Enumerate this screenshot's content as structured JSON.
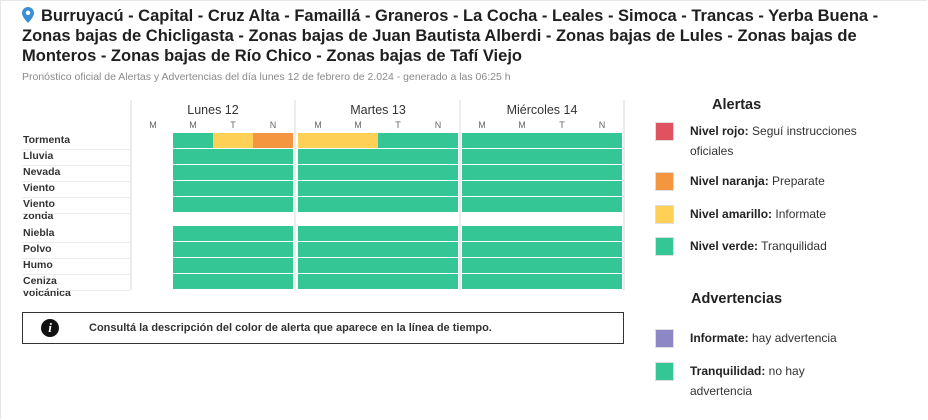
{
  "header": {
    "icon": "map-pin-icon",
    "title": "Burruyacú - Capital - Cruz Alta - Famaillá - Graneros - La Cocha - Leales - Simoca - Trancas - Yerba Buena - Zonas bajas de Chicligasta - Zonas bajas de Juan Bautista Alberdi - Zonas bajas de Lules - Zonas bajas de Monteros - Zonas bajas de Río Chico - Zonas bajas de Tafí Viejo",
    "subtitle": "Pronóstico oficial de Alertas y Advertencias del día lunes 12 de febrero de 2.024 - generado a las 06:25 h"
  },
  "timeline": {
    "days": [
      {
        "label": "Lunes 12",
        "slots": [
          "M",
          "M",
          "T",
          "N"
        ]
      },
      {
        "label": "Martes 13",
        "slots": [
          "M",
          "M",
          "T",
          "N"
        ]
      },
      {
        "label": "Miércoles 14",
        "slots": [
          "M",
          "M",
          "T",
          "N"
        ]
      }
    ],
    "rows": [
      {
        "label": "Tormenta",
        "levels": [
          null,
          "green",
          "yellow",
          "orange",
          "yellow",
          "yellow",
          "green",
          "green",
          "green",
          "green",
          "green",
          "green"
        ]
      },
      {
        "label": "Lluvia",
        "levels": [
          null,
          "green",
          "green",
          "green",
          "green",
          "green",
          "green",
          "green",
          "green",
          "green",
          "green",
          "green"
        ]
      },
      {
        "label": "Nevada",
        "levels": [
          null,
          "green",
          "green",
          "green",
          "green",
          "green",
          "green",
          "green",
          "green",
          "green",
          "green",
          "green"
        ]
      },
      {
        "label": "Viento",
        "levels": [
          null,
          "green",
          "green",
          "green",
          "green",
          "green",
          "green",
          "green",
          "green",
          "green",
          "green",
          "green"
        ]
      },
      {
        "label": "Viento zonda",
        "levels": [
          null,
          "green",
          "green",
          "green",
          "green",
          "green",
          "green",
          "green",
          "green",
          "green",
          "green",
          "green"
        ]
      },
      {
        "label": "Niebla",
        "levels": [
          null,
          "green",
          "green",
          "green",
          "green",
          "green",
          "green",
          "green",
          "green",
          "green",
          "green",
          "green"
        ]
      },
      {
        "label": "Polvo",
        "levels": [
          null,
          "green",
          "green",
          "green",
          "green",
          "green",
          "green",
          "green",
          "green",
          "green",
          "green",
          "green"
        ]
      },
      {
        "label": "Humo",
        "levels": [
          null,
          "green",
          "green",
          "green",
          "green",
          "green",
          "green",
          "green",
          "green",
          "green",
          "green",
          "green"
        ]
      },
      {
        "label": "Ceniza volcánica",
        "levels": [
          null,
          "green",
          "green",
          "green",
          "green",
          "green",
          "green",
          "green",
          "green",
          "green",
          "green",
          "green"
        ]
      }
    ]
  },
  "info": {
    "icon": "info-icon",
    "glyph": "i",
    "text": "Consultá la descripción del color de alerta que aparece en la línea de tiempo."
  },
  "legend": {
    "alertas_title": "Alertas",
    "alertas": [
      {
        "label": "Nivel rojo:",
        "desc": "Seguí instrucciones oficiales",
        "color": "#e0525f"
      },
      {
        "label": "Nivel naranja:",
        "desc": "Preparate",
        "color": "#f4963f"
      },
      {
        "label": "Nivel amarillo:",
        "desc": "Informate",
        "color": "#fed055"
      },
      {
        "label": "Nivel verde:",
        "desc": "Tranquilidad",
        "color": "#34c795"
      }
    ],
    "advertencias_title": "Advertencias",
    "advertencias": [
      {
        "label": "Informate:",
        "desc": "hay advertencia",
        "color": "#8d87c6"
      },
      {
        "label": "Tranquilidad:",
        "desc": "no hay advertencia",
        "color": "#34c795"
      }
    ]
  }
}
